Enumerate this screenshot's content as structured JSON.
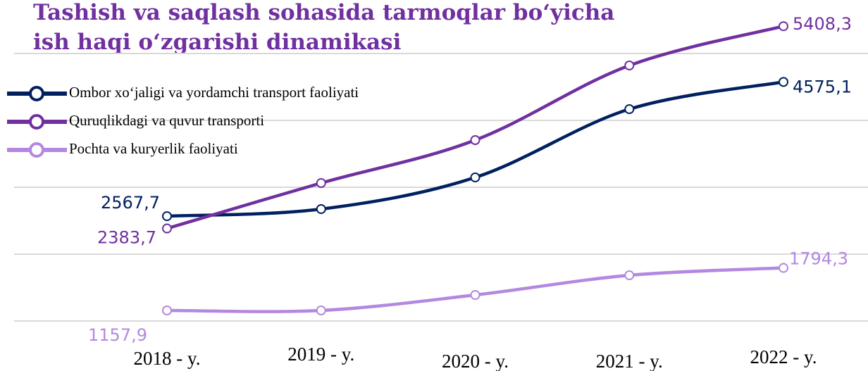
{
  "chart_data": {
    "type": "line",
    "title": [
      "Tashish va saqlash sohasida tarmoqlar bo‘yicha",
      "ish haqi o‘zgarishi dinamikasi"
    ],
    "categories": [
      "2018 - y.",
      "2019 - y.",
      "2020 - y.",
      "2021 - y.",
      "2022 - y."
    ],
    "series": [
      {
        "name": "Ombor xo‘jaligi va yordamchi transport faoliyati",
        "color": "#002060",
        "values": [
          2567.7,
          2674,
          3147,
          4168,
          4575.1
        ],
        "value_labels": [
          "2567,7",
          null,
          null,
          null,
          "4575,1"
        ]
      },
      {
        "name": "Quruqlikdagi va quvur  transporti",
        "color": "#7030a0",
        "values": [
          2383.7,
          3063,
          3705,
          4821,
          5408.3
        ],
        "value_labels": [
          "2383,7",
          null,
          null,
          null,
          "5408,3"
        ]
      },
      {
        "name": "Pochta va kuryerlik faoliyati",
        "color": "#b388e0",
        "values": [
          1157.9,
          1158,
          1389,
          1684,
          1794.3
        ],
        "value_labels": [
          "1157,9",
          null,
          null,
          null,
          "1794,3"
        ]
      }
    ],
    "ylim": [
      800,
      5800
    ],
    "yticks": [
      1000,
      2000,
      3000,
      4000,
      5000
    ],
    "grid": true,
    "legend": "top-left"
  }
}
